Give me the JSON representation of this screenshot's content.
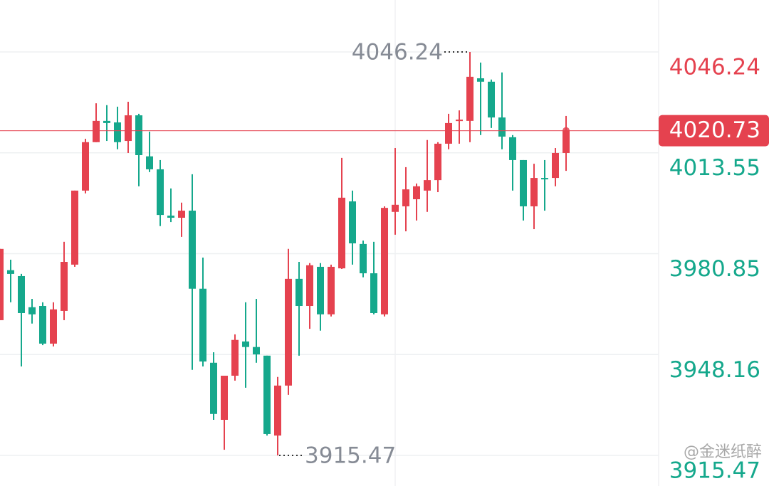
{
  "chart_data": {
    "type": "candlestick",
    "open": [
      3959.3,
      3975.5,
      3973.6,
      3963.5,
      3963.9,
      3951.7,
      3962.3,
      3977.3,
      4001.3,
      4017.0,
      4023.9,
      4023.4,
      4017.4,
      4025.7,
      4012.4,
      4008.2,
      3993.2,
      3992.5,
      3994.8,
      3969.5,
      3945.5,
      3927.0,
      3941.3,
      3952.4,
      3950.6,
      3947.8,
      3921.9,
      3938.1,
      3972.7,
      3963.9,
      3976.6,
      3961.2,
      3976.1,
      3997.8,
      3984.0,
      3974.5,
      3961.2,
      3994.4,
      3996.2,
      3998.5,
      4001.3,
      4004.7,
      4016.5,
      4023.9,
      4023.9,
      4037.7,
      4036.6,
      4025.0,
      4018.6,
      4011.2,
      3996.2,
      4005.4,
      4005.4,
      4013.5
    ],
    "high": [
      3982.4,
      3978.9,
      3974.3,
      3966.2,
      3965.1,
      3965.1,
      3984.7,
      4001.3,
      4018.1,
      4029.6,
      4029.0,
      4028.5,
      4030.1,
      4026.2,
      4020.4,
      4011.2,
      4002.0,
      3997.4,
      4006.6,
      3979.6,
      3948.9,
      3941.3,
      3954.7,
      3965.1,
      3966.2,
      3947.8,
      3940.9,
      3982.4,
      3978.2,
      3977.8,
      3977.8,
      3977.3,
      4011.9,
      4001.3,
      3985.1,
      3984.7,
      3996.2,
      4015.1,
      4008.9,
      4003.6,
      4017.7,
      4017.0,
      4026.2,
      4027.3,
      4046.24,
      4042.8,
      4037.3,
      4039.6,
      4019.3,
      4011.2,
      4010.0,
      4011.2,
      4015.1,
      4025.5
    ],
    "low": [
      3959.3,
      3965.1,
      3944.3,
      3958.2,
      3951.2,
      3950.8,
      3959.3,
      3976.6,
      4000.4,
      4017.0,
      4017.4,
      4014.7,
      4013.5,
      4002.7,
      4007.3,
      3989.8,
      3991.1,
      3986.3,
      3943.2,
      3944.3,
      3927.0,
      3917.3,
      3939.7,
      3937.4,
      3945.5,
      3921.9,
      3915.47,
      3935.1,
      3947.8,
      3956.5,
      3955.9,
      3960.5,
      3975.9,
      3977.3,
      3973.2,
      3961.2,
      3960.5,
      3987.0,
      3988.1,
      3991.6,
      3994.4,
      4000.8,
      4014.7,
      4016.5,
      4017.0,
      4019.3,
      4021.6,
      4014.7,
      4001.3,
      3991.6,
      3988.8,
      3994.8,
      4002.7,
      4007.7
    ],
    "close": [
      3982.4,
      3974.3,
      3961.6,
      3961.2,
      3951.7,
      3962.8,
      3978.2,
      4001.3,
      4017.0,
      4023.9,
      4023.2,
      4017.0,
      4025.7,
      4012.8,
      4008.2,
      3993.4,
      3992.5,
      3994.8,
      3969.5,
      3945.9,
      3928.9,
      3941.3,
      3952.9,
      3950.6,
      3948.2,
      3922.4,
      3938.1,
      3972.7,
      3963.9,
      3977.1,
      3961.2,
      3976.6,
      3999.0,
      3984.2,
      3974.5,
      3961.6,
      3995.7,
      3996.7,
      4001.7,
      4002.7,
      4004.7,
      4016.5,
      4023.2,
      4024.3,
      4038.2,
      4036.6,
      4025.0,
      4018.8,
      4011.2,
      3996.2,
      4005.4,
      4005.0,
      4013.5,
      4020.73
    ],
    "up_color": "#e5424f",
    "down_color": "#15a88c",
    "ylim": [
      3905.55,
      4063.08
    ],
    "yticks": [
      3915.47,
      3948.16,
      3980.85,
      4013.55,
      4046.24
    ],
    "grid": true,
    "last_price": 4020.73,
    "max_label": 4046.24,
    "min_label": 3915.47,
    "watermark": "@金迷纸醉"
  }
}
